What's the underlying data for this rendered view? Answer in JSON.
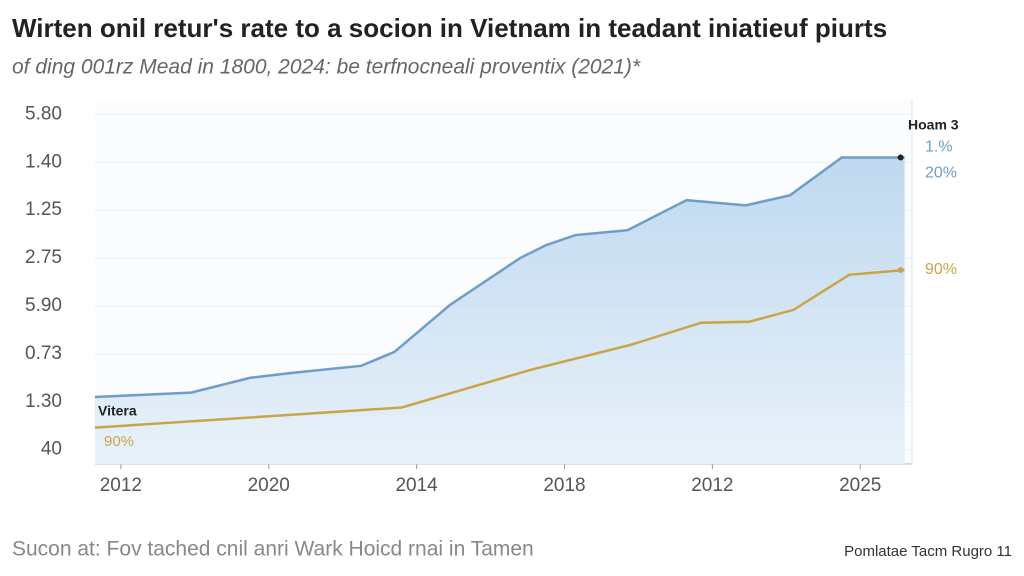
{
  "chart_data": {
    "type": "area-line",
    "title": "Wirten onil retur's rate to a socion in Vietnam in teadant iniatieuf piurts",
    "subtitle": "of ding 001rz Mead in 1800, 2024: be terfnocneali proventix (2021)*",
    "source": "Sucon at: Fov tached cnil anri Wark Hoicd rnai in Tamen",
    "credit": "Pomlatae Tacm Rugro 11",
    "xlim": [
      -0.7,
      21.4
    ],
    "xticks": [
      {
        "value": 0,
        "label": "2012"
      },
      {
        "value": 4,
        "label": "2020"
      },
      {
        "value": 8,
        "label": "2014"
      },
      {
        "value": 12,
        "label": "2018"
      },
      {
        "value": 16,
        "label": "2012"
      },
      {
        "value": 20,
        "label": "2025"
      }
    ],
    "ylim": [
      -0.3,
      7.3
    ],
    "yticks": [
      {
        "value": 0,
        "label": "40"
      },
      {
        "value": 1,
        "label": "1.30"
      },
      {
        "value": 2,
        "label": "0.73"
      },
      {
        "value": 3,
        "label": "5.90"
      },
      {
        "value": 4,
        "label": "2.75"
      },
      {
        "value": 5,
        "label": "1.25"
      },
      {
        "value": 6,
        "label": "1.40"
      },
      {
        "value": 7,
        "label": "5.80"
      }
    ],
    "series": [
      {
        "name": "Hoam 3",
        "color": "#6f9cc9",
        "area": true,
        "x": [
          -0.7,
          1.9,
          3.5,
          4.6,
          6.5,
          7.4,
          8.9,
          10.8,
          11.5,
          12.3,
          13.7,
          15.3,
          16.9,
          18.1,
          19.5,
          21.2
        ],
        "values": [
          1.1,
          1.19,
          1.5,
          1.6,
          1.75,
          2.04,
          3.02,
          4.0,
          4.27,
          4.48,
          4.58,
          5.21,
          5.1,
          5.31,
          6.1,
          6.1
        ],
        "end_labels": [
          "1.%",
          "20%"
        ]
      },
      {
        "name": "Vitera",
        "color": "#c9a44a",
        "area": false,
        "x": [
          -0.7,
          3.5,
          7.6,
          11.1,
          13.8,
          15.7,
          17.0,
          18.2,
          19.7,
          21.2
        ],
        "values": [
          0.46,
          0.67,
          0.88,
          1.67,
          2.19,
          2.65,
          2.67,
          2.92,
          3.65,
          3.75
        ],
        "end_labels": [
          "90%"
        ],
        "start_label": "90%"
      }
    ]
  }
}
